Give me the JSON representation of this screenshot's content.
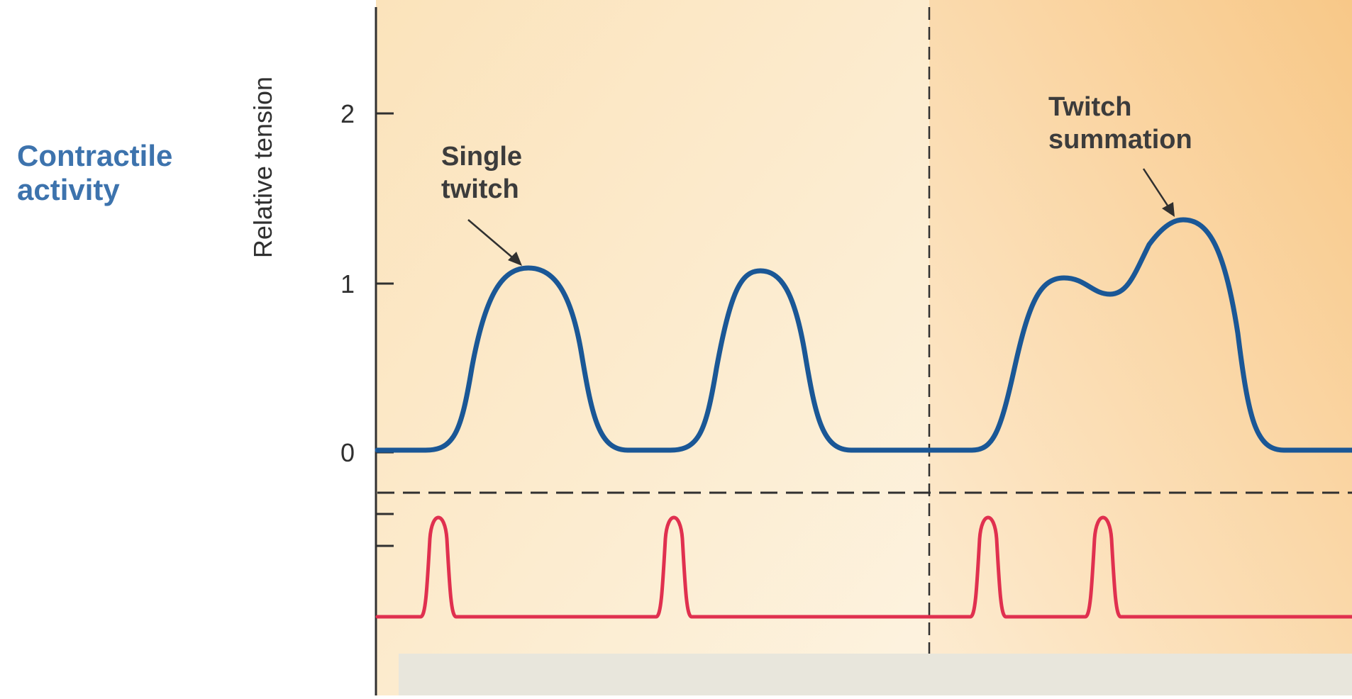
{
  "figure": {
    "row_label": "Contractile\nactivity",
    "y_axis_label": "Relative tension",
    "y_ticks": [
      "0",
      "1",
      "2"
    ],
    "annotations": {
      "single_twitch": "Single\ntwitch",
      "twitch_summation": "Twitch\nsummation"
    }
  },
  "colors": {
    "tension_curve": "#1a5796",
    "action_potential": "#e0304f",
    "background_light": "#fdf0d6",
    "background_dark": "#f8ca8e",
    "bottom_band": "#e8e6dc",
    "axis": "#303030"
  }
}
